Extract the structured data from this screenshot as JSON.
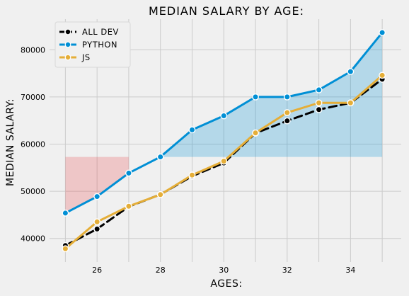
{
  "chart_data": {
    "type": "line",
    "title": "MEDIAN SALARY BY AGE:",
    "xlabel": "AGES:",
    "ylabel": "MEDIAN SALARY:",
    "x": [
      25,
      26,
      27,
      28,
      29,
      30,
      31,
      32,
      33,
      34,
      35
    ],
    "xlim": [
      24.5,
      35.6
    ],
    "ylim": [
      35000,
      86500
    ],
    "xticks": [
      26,
      28,
      30,
      32,
      34
    ],
    "yticks": [
      40000,
      50000,
      60000,
      70000,
      80000
    ],
    "fill_threshold": 57287,
    "grid": true,
    "legend_position": "top-left",
    "series": [
      {
        "name": "ALL DEV",
        "color": "#000000",
        "dashed": true,
        "fill": false,
        "values": [
          38496,
          42000,
          46752,
          49320,
          53200,
          56000,
          62316,
          64928,
          67317,
          68748,
          73752
        ]
      },
      {
        "name": "PYTHON",
        "color": "#008fd5",
        "dashed": false,
        "fill": true,
        "values": [
          45372,
          48876,
          53850,
          57287,
          63016,
          65998,
          70003,
          70000,
          71496,
          75370,
          83640
        ]
      },
      {
        "name": "JS",
        "color": "#e5ae38",
        "dashed": false,
        "fill": false,
        "values": [
          37810,
          43515,
          46823,
          49293,
          53437,
          56373,
          62375,
          66674,
          68745,
          68746,
          74583
        ]
      }
    ],
    "fill_colors": {
      "above": "#008fd5",
      "below": "#e8494b"
    }
  }
}
